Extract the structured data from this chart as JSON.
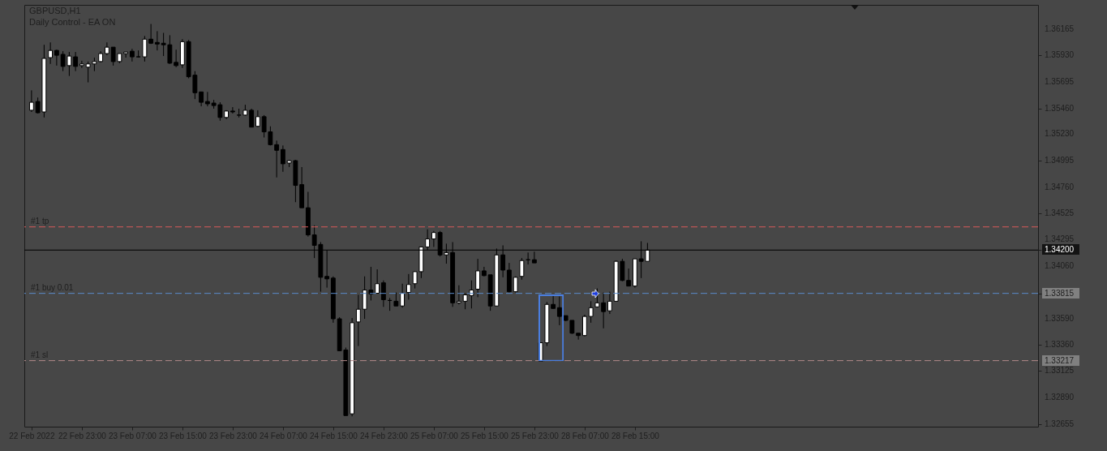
{
  "chart_data": {
    "type": "candlestick",
    "title": "GBPUSD,H1",
    "subtitle": "Daily Control - EA ON",
    "categories": [
      "22 Feb 2022",
      null,
      null,
      null,
      null,
      null,
      null,
      null,
      "22 Feb 23:00",
      null,
      null,
      null,
      null,
      null,
      null,
      null,
      "23 Feb 07:00",
      null,
      null,
      null,
      null,
      null,
      null,
      null,
      "23 Feb 15:00",
      null,
      null,
      null,
      null,
      null,
      null,
      null,
      "23 Feb 23:00",
      null,
      null,
      null,
      null,
      null,
      null,
      null,
      "24 Feb 07:00",
      null,
      null,
      null,
      null,
      null,
      null,
      null,
      "24 Feb 15:00",
      null,
      null,
      null,
      null,
      null,
      null,
      null,
      "24 Feb 23:00",
      null,
      null,
      null,
      null,
      null,
      null,
      null,
      "25 Feb 07:00",
      null,
      null,
      null,
      null,
      null,
      null,
      null,
      "25 Feb 15:00",
      null,
      null,
      null,
      null,
      null,
      null,
      null,
      "25 Feb 23:00",
      null,
      null,
      null,
      null,
      null,
      null,
      null,
      "28 Feb 07:00",
      null,
      null,
      null,
      null,
      null,
      null,
      null,
      "28 Feb 15:00",
      null,
      null,
      null,
      null,
      null,
      null,
      null,
      null,
      null,
      null,
      null,
      null,
      null,
      null,
      null,
      null,
      null,
      null,
      null,
      null,
      null,
      null,
      null,
      null,
      null,
      null,
      null,
      null,
      null,
      null,
      null,
      null,
      null,
      null,
      null,
      null,
      null,
      null,
      null,
      null,
      null,
      null,
      null,
      null,
      null,
      null,
      null,
      null,
      null,
      null,
      null,
      null,
      null,
      null,
      null,
      null,
      null,
      null,
      null,
      null,
      null,
      null,
      null
    ],
    "ohlc": [
      [
        1.35443,
        1.3562,
        1.35428,
        1.35514
      ],
      [
        1.35521,
        1.35556,
        1.35414,
        1.35421
      ],
      [
        1.35428,
        1.36025,
        1.35379,
        1.35904
      ],
      [
        1.35911,
        1.36046,
        1.35855,
        1.35975
      ],
      [
        1.35975,
        1.35982,
        1.3584,
        1.35932
      ],
      [
        1.3594,
        1.35968,
        1.35791,
        1.35833
      ],
      [
        1.3584,
        1.35961,
        1.35748,
        1.35925
      ],
      [
        1.35918,
        1.35961,
        1.35791,
        1.35833
      ],
      [
        1.3584,
        1.35883,
        1.35819,
        1.35855
      ],
      [
        1.35826,
        1.35876,
        1.35691,
        1.35855
      ],
      [
        1.35855,
        1.35911,
        1.35791,
        1.35876
      ],
      [
        1.35876,
        1.35968,
        1.35869,
        1.35947
      ],
      [
        1.35947,
        1.36046,
        1.35932,
        1.36004
      ],
      [
        1.36004,
        1.36004,
        1.3584,
        1.35876
      ],
      [
        1.35876,
        1.35947,
        1.35862,
        1.35947
      ],
      [
        1.35947,
        1.35961,
        1.35911,
        1.35961
      ],
      [
        1.35968,
        1.35989,
        1.35876,
        1.35918
      ],
      [
        1.35918,
        1.35975,
        1.35911,
        1.35918
      ],
      [
        1.35918,
        1.36103,
        1.35876,
        1.36075
      ],
      [
        1.36075,
        1.3621,
        1.36032,
        1.36039
      ],
      [
        1.36046,
        1.36146,
        1.35975,
        1.36032
      ],
      [
        1.36039,
        1.36131,
        1.35925,
        1.36025
      ],
      [
        1.36025,
        1.3611,
        1.35855,
        1.35862
      ],
      [
        1.35869,
        1.35982,
        1.35826,
        1.3584
      ],
      [
        1.35847,
        1.36075,
        1.35819,
        1.36053
      ],
      [
        1.36053,
        1.36068,
        1.35727,
        1.35741
      ],
      [
        1.35755,
        1.35791,
        1.35542,
        1.35599
      ],
      [
        1.35606,
        1.35606,
        1.35478,
        1.35514
      ],
      [
        1.35521,
        1.35606,
        1.35478,
        1.355
      ],
      [
        1.35507,
        1.35535,
        1.35457,
        1.35485
      ],
      [
        1.35492,
        1.35514,
        1.3535,
        1.35379
      ],
      [
        1.35379,
        1.35443,
        1.35364,
        1.35436
      ],
      [
        1.35436,
        1.35471,
        1.35414,
        1.35428
      ],
      [
        1.354,
        1.35457,
        1.35379,
        1.354
      ],
      [
        1.354,
        1.35492,
        1.35393,
        1.35443
      ],
      [
        1.35443,
        1.35457,
        1.35293,
        1.35293
      ],
      [
        1.353,
        1.35443,
        1.35293,
        1.35386
      ],
      [
        1.35386,
        1.354,
        1.35201,
        1.35251
      ],
      [
        1.35251,
        1.353,
        1.3513,
        1.35137
      ],
      [
        1.35137,
        1.35173,
        1.34846,
        1.35087
      ],
      [
        1.35094,
        1.3513,
        1.34896,
        1.34967
      ],
      [
        1.34974,
        1.35002,
        1.34938,
        1.34995
      ],
      [
        1.34995,
        1.35002,
        1.34626,
        1.34775
      ],
      [
        1.34782,
        1.34938,
        1.34576,
        1.34576
      ],
      [
        1.34576,
        1.34718,
        1.3432,
        1.34335
      ],
      [
        1.34335,
        1.3442,
        1.34129,
        1.34242
      ],
      [
        1.3425,
        1.34271,
        1.3383,
        1.33958
      ],
      [
        1.33966,
        1.342,
        1.33866,
        1.33944
      ],
      [
        1.33951,
        1.33966,
        1.33554,
        1.33589
      ],
      [
        1.33589,
        1.33603,
        1.33305,
        1.33305
      ],
      [
        1.33312,
        1.33333,
        1.32729,
        1.32729
      ],
      [
        1.32744,
        1.33596,
        1.32722,
        1.33554
      ],
      [
        1.33561,
        1.33802,
        1.33347,
        1.33674
      ],
      [
        1.33674,
        1.33966,
        1.33589,
        1.33845
      ],
      [
        1.33845,
        1.34051,
        1.33752,
        1.33809
      ],
      [
        1.33816,
        1.34029,
        1.33816,
        1.33901
      ],
      [
        1.33909,
        1.3393,
        1.33695,
        1.33759
      ],
      [
        1.33752,
        1.33774,
        1.3366,
        1.33752
      ],
      [
        1.33745,
        1.33823,
        1.33703,
        1.33703
      ],
      [
        1.33703,
        1.33901,
        1.33688,
        1.33816
      ],
      [
        1.33823,
        1.33987,
        1.33759,
        1.33894
      ],
      [
        1.33901,
        1.34015,
        1.33859,
        1.34008
      ],
      [
        1.34008,
        1.34228,
        1.33951,
        1.34228
      ],
      [
        1.34228,
        1.34384,
        1.342,
        1.34299
      ],
      [
        1.34299,
        1.3437,
        1.34228,
        1.34356
      ],
      [
        1.34356,
        1.3437,
        1.34143,
        1.34157
      ],
      [
        1.34157,
        1.34257,
        1.34079,
        1.34178
      ],
      [
        1.34178,
        1.34271,
        1.33695,
        1.33731
      ],
      [
        1.33731,
        1.33887,
        1.33717,
        1.33745
      ],
      [
        1.33745,
        1.33816,
        1.33674,
        1.33802
      ],
      [
        1.33795,
        1.3393,
        1.33681,
        1.33845
      ],
      [
        1.33852,
        1.34122,
        1.33781,
        1.34015
      ],
      [
        1.34015,
        1.34051,
        1.33966,
        1.33973
      ],
      [
        1.3398,
        1.3398,
        1.3366,
        1.33703
      ],
      [
        1.33703,
        1.34214,
        1.33703,
        1.34157
      ],
      [
        1.34157,
        1.34242,
        1.33958,
        1.34022
      ],
      [
        1.34022,
        1.34086,
        1.33823,
        1.3383
      ],
      [
        1.3383,
        1.33966,
        1.33823,
        1.33958
      ],
      [
        1.33966,
        1.34129,
        1.33937,
        1.34107
      ],
      [
        1.34114,
        1.34178,
        1.34072,
        1.34114
      ],
      [
        1.34114,
        1.34186,
        1.34086,
        1.34086
      ],
      [
        1.33212,
        1.33376,
        1.33212,
        1.33376
      ],
      [
        1.33376,
        1.33738,
        1.33347,
        1.33717
      ],
      [
        1.33717,
        1.33802,
        1.33681,
        1.33681
      ],
      [
        1.33688,
        1.33788,
        1.33532,
        1.3361
      ],
      [
        1.33617,
        1.33617,
        1.33568,
        1.33575
      ],
      [
        1.33575,
        1.33575,
        1.33454,
        1.33461
      ],
      [
        1.33461,
        1.33461,
        1.33404,
        1.3344
      ],
      [
        1.3344,
        1.33625,
        1.33433,
        1.3361
      ],
      [
        1.3361,
        1.33745,
        1.33554,
        1.33688
      ],
      [
        1.33695,
        1.33859,
        1.33688,
        1.33731
      ],
      [
        1.33731,
        1.33823,
        1.33504,
        1.33653
      ],
      [
        1.3366,
        1.3383,
        1.33632,
        1.33745
      ],
      [
        1.33745,
        1.34107,
        1.33745,
        1.341
      ],
      [
        1.341,
        1.34122,
        1.33923,
        1.3393
      ],
      [
        1.3393,
        1.34036,
        1.3388,
        1.3388
      ],
      [
        1.3388,
        1.34122,
        1.33866,
        1.34122
      ],
      [
        1.34122,
        1.34278,
        1.33951,
        1.341
      ],
      [
        1.341,
        1.34264,
        1.341,
        1.342
      ],
      null,
      null,
      null,
      null,
      null,
      null,
      null,
      null,
      null,
      null,
      null,
      null,
      null,
      null,
      null,
      null,
      null,
      null,
      null,
      null,
      null,
      null,
      null,
      null,
      null,
      null,
      null,
      null,
      null,
      null,
      null,
      null,
      null,
      null,
      null,
      null,
      null,
      null,
      null,
      null,
      null,
      null,
      null,
      null,
      null,
      null,
      null,
      null,
      null,
      null,
      null,
      null,
      null,
      null,
      null,
      null,
      null,
      null,
      null,
      null,
      null
    ],
    "ylim": [
      1.3263,
      1.3638
    ],
    "yticks": [
      1.36165,
      {
        "value": 1.3593,
        "label": "1.35930"
      },
      1.35695,
      {
        "value": 1.3546,
        "label": "1.35460"
      },
      {
        "value": 1.3523,
        "label": "1.35230"
      },
      1.34995,
      {
        "value": 1.3476,
        "label": "1.34760"
      },
      1.34525,
      1.34295,
      {
        "value": 1.342,
        "label": "1.34200"
      },
      {
        "value": 1.3406,
        "label": "1.34060"
      },
      1.33815,
      {
        "value": 1.3359,
        "label": "1.33590"
      },
      {
        "value": 1.3336,
        "label": "1.33360"
      },
      1.33217,
      1.33125,
      {
        "value": 1.3289,
        "label": "1.32890"
      },
      1.32655
    ],
    "ref_lines": [
      {
        "axis": "y",
        "value": 1.34406,
        "label": "#1 tp",
        "color": "#d95a5a",
        "line_style": "dashed"
      },
      {
        "axis": "y",
        "value": 1.342,
        "label": null,
        "color": "#000000",
        "line_style": "solid"
      },
      {
        "axis": "y",
        "value": 1.33815,
        "label": "#1 buy 0.01",
        "color": "#5b8ccc",
        "line_style": "dashed"
      },
      {
        "axis": "y",
        "value": 1.33217,
        "label": "#1 sl",
        "color": "#b08888",
        "line_style": "dashed"
      }
    ],
    "grid": false
  }
}
